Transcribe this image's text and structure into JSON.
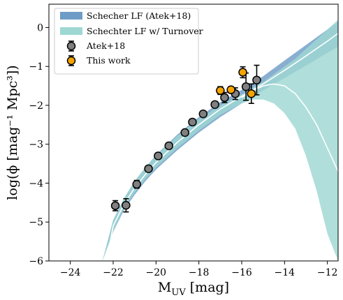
{
  "chart_data": {
    "type": "scatter",
    "title": "",
    "xlabel_main": "M",
    "xlabel_sub": "UV",
    "xlabel_tail": " [mag]",
    "ylabel": "log(ϕ [mag⁻¹ Mpc³])",
    "xlim": [
      -25,
      -11.5
    ],
    "ylim": [
      -6,
      0.6
    ],
    "xticks": [
      -24,
      -22,
      -20,
      -18,
      -16,
      -14,
      -12
    ],
    "xtick_labels": [
      "−24",
      "−22",
      "−20",
      "−18",
      "−16",
      "−14",
      "−12"
    ],
    "yticks": [
      0,
      -1,
      -2,
      -3,
      -4,
      -5,
      -6
    ],
    "ytick_labels": [
      "0",
      "−1",
      "−2",
      "−3",
      "−4",
      "−5",
      "−6"
    ],
    "legend": {
      "position": "top-left",
      "entries": [
        "Schecher LF (Atek+18)",
        "Schechter LF w/ Turnover",
        "Atek+18",
        "This work"
      ]
    },
    "bands": [
      {
        "name": "Schecher LF (Atek+18)",
        "color": "#6f9cc7",
        "x": [
          -22.5,
          -22,
          -21.5,
          -21,
          -20.5,
          -20,
          -19,
          -18,
          -17,
          -16,
          -15,
          -14,
          -13,
          -12,
          -11.5
        ],
        "lower": [
          -6.0,
          -5.25,
          -4.7,
          -4.3,
          -3.95,
          -3.65,
          -3.15,
          -2.7,
          -2.3,
          -1.95,
          -1.62,
          -1.3,
          -0.98,
          -0.65,
          -0.5
        ],
        "upper": [
          -6.0,
          -4.95,
          -4.4,
          -3.95,
          -3.6,
          -3.28,
          -2.75,
          -2.3,
          -1.92,
          -1.6,
          -1.25,
          -0.85,
          -0.45,
          -0.05,
          0.15
        ]
      },
      {
        "name": "Schechter LF w/ Turnover",
        "color": "#9fd8d3",
        "x": [
          -22.5,
          -22,
          -21.5,
          -21,
          -20.5,
          -20,
          -19,
          -18,
          -17,
          -16,
          -15.5,
          -15,
          -14.5,
          -14,
          -13.5,
          -13,
          -12.5,
          -12,
          -11.5
        ],
        "lower": [
          -6.0,
          -5.25,
          -4.65,
          -4.25,
          -3.9,
          -3.6,
          -3.1,
          -2.65,
          -2.25,
          -1.95,
          -1.85,
          -1.85,
          -1.95,
          -2.2,
          -2.6,
          -3.3,
          -4.2,
          -5.3,
          -6.0
        ],
        "upper": [
          -6.0,
          -4.95,
          -4.4,
          -3.95,
          -3.6,
          -3.3,
          -2.78,
          -2.35,
          -2.0,
          -1.72,
          -1.55,
          -1.4,
          -1.2,
          -1.0,
          -0.8,
          -0.55,
          -0.3,
          -0.05,
          0.2
        ]
      }
    ],
    "lines": [
      {
        "name": "Schecher LF (Atek+18) median",
        "color": "#ffffff",
        "x": [
          -22.3,
          -22,
          -21.5,
          -21,
          -20.5,
          -20,
          -19,
          -18,
          -17,
          -16,
          -15,
          -14,
          -13,
          -12,
          -11.5
        ],
        "y": [
          -6.0,
          -5.1,
          -4.55,
          -4.12,
          -3.78,
          -3.47,
          -2.95,
          -2.5,
          -2.1,
          -1.77,
          -1.45,
          -1.1,
          -0.73,
          -0.35,
          -0.15
        ]
      },
      {
        "name": "Schechter LF w/ Turnover median",
        "color": "#ffffff",
        "x": [
          -16,
          -15.5,
          -15,
          -14.5,
          -14,
          -13.5,
          -13,
          -12.5,
          -12,
          -11.5
        ],
        "y": [
          -1.8,
          -1.63,
          -1.5,
          -1.45,
          -1.5,
          -1.7,
          -2.05,
          -2.5,
          -3.1,
          -3.7
        ]
      }
    ],
    "series": [
      {
        "name": "Atek+18",
        "color": "#808080",
        "x": [
          -21.9,
          -21.4,
          -20.9,
          -20.35,
          -19.9,
          -19.4,
          -18.65,
          -18.3,
          -17.8,
          -17.25,
          -16.8,
          -16.3,
          -15.8,
          -15.3
        ],
        "y": [
          -4.58,
          -4.57,
          -4.03,
          -3.63,
          -3.3,
          -3.04,
          -2.7,
          -2.43,
          -2.22,
          -1.98,
          -1.8,
          -1.7,
          -1.52,
          -1.35
        ],
        "yerr": [
          0.13,
          0.17,
          0.1,
          0.07,
          0.05,
          0.05,
          0.06,
          0.05,
          0.06,
          0.07,
          0.13,
          0.15,
          0.35,
          0.38
        ]
      },
      {
        "name": "This work",
        "color": "#f5a300",
        "x": [
          -17.0,
          -16.5,
          -15.95,
          -15.55
        ],
        "y": [
          -1.62,
          -1.6,
          -1.15,
          -1.7
        ],
        "yerr": [
          0.1,
          0.08,
          0.14,
          0.25
        ]
      }
    ]
  }
}
